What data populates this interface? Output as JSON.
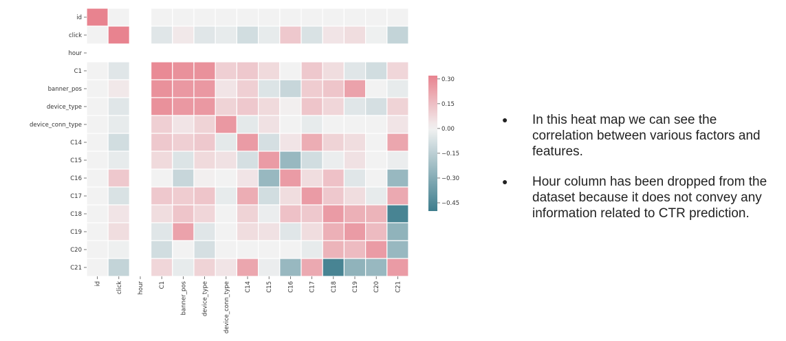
{
  "chart_data": {
    "type": "heatmap",
    "title": "",
    "row_labels": [
      "id",
      "click",
      "hour",
      "C1",
      "banner_pos",
      "device_type",
      "device_conn_type",
      "C14",
      "C15",
      "C16",
      "C17",
      "C18",
      "C19",
      "C20",
      "C21"
    ],
    "col_labels": [
      "id",
      "click",
      "hour",
      "C1",
      "banner_pos",
      "device_type",
      "device_conn_type",
      "C14",
      "C15",
      "C16",
      "C17",
      "C18",
      "C19",
      "C20",
      "C21"
    ],
    "values": [
      [
        1.0,
        0.0,
        null,
        0.0,
        0.0,
        0.0,
        0.0,
        0.0,
        0.0,
        0.0,
        0.0,
        0.0,
        0.0,
        0.0,
        0.0
      ],
      [
        0.0,
        1.0,
        null,
        -0.05,
        0.03,
        -0.05,
        -0.03,
        -0.09,
        -0.03,
        0.12,
        -0.07,
        0.04,
        0.06,
        -0.01,
        -0.13
      ],
      [
        null,
        null,
        null,
        null,
        null,
        null,
        null,
        null,
        null,
        null,
        null,
        null,
        null,
        null,
        null
      ],
      [
        0.0,
        -0.05,
        null,
        0.3,
        0.28,
        0.28,
        0.1,
        0.12,
        0.07,
        0.0,
        0.12,
        0.06,
        -0.05,
        -0.09,
        0.08
      ],
      [
        0.0,
        0.03,
        null,
        0.28,
        0.26,
        0.26,
        0.04,
        0.1,
        -0.06,
        -0.12,
        0.11,
        0.13,
        0.23,
        0.0,
        -0.03
      ],
      [
        0.0,
        -0.05,
        null,
        0.28,
        0.26,
        0.26,
        0.09,
        0.12,
        0.07,
        0.01,
        0.13,
        0.08,
        -0.05,
        -0.08,
        0.09
      ],
      [
        0.0,
        -0.03,
        null,
        0.1,
        0.04,
        0.09,
        0.26,
        -0.04,
        0.05,
        0.0,
        -0.03,
        0.0,
        0.0,
        0.0,
        0.04
      ],
      [
        0.0,
        -0.09,
        null,
        0.12,
        0.1,
        0.12,
        -0.04,
        0.25,
        -0.08,
        0.04,
        0.2,
        0.09,
        0.06,
        0.0,
        0.22
      ],
      [
        0.0,
        -0.03,
        null,
        0.07,
        -0.06,
        0.07,
        0.05,
        -0.08,
        0.25,
        -0.25,
        -0.09,
        -0.02,
        0.05,
        0.0,
        -0.02
      ],
      [
        0.0,
        0.12,
        null,
        0.0,
        -0.12,
        0.01,
        0.0,
        0.04,
        -0.25,
        0.25,
        0.06,
        0.14,
        -0.05,
        0.0,
        -0.25
      ],
      [
        0.0,
        -0.07,
        null,
        0.12,
        0.11,
        0.13,
        -0.03,
        0.2,
        -0.09,
        0.06,
        0.25,
        0.12,
        0.06,
        -0.03,
        0.21
      ],
      [
        0.0,
        0.04,
        null,
        0.06,
        0.13,
        0.08,
        0.0,
        0.09,
        -0.02,
        0.14,
        0.12,
        0.25,
        0.19,
        0.18,
        -0.47
      ],
      [
        0.0,
        0.06,
        null,
        -0.05,
        0.23,
        -0.05,
        0.0,
        0.06,
        0.05,
        -0.05,
        0.06,
        0.19,
        0.25,
        0.16,
        -0.27
      ],
      [
        0.0,
        -0.01,
        null,
        -0.09,
        0.0,
        -0.08,
        0.0,
        0.0,
        0.0,
        0.0,
        -0.03,
        0.18,
        0.16,
        0.25,
        -0.25
      ],
      [
        0.0,
        -0.13,
        null,
        0.08,
        -0.03,
        0.09,
        0.04,
        0.22,
        -0.02,
        -0.25,
        0.21,
        -0.47,
        -0.27,
        -0.25,
        0.25
      ]
    ],
    "colorbar_ticks": [
      "0.30",
      "0.15",
      "0.00",
      "−0.15",
      "−0.30",
      "−0.45"
    ],
    "colorbar_tick_values": [
      0.3,
      0.15,
      0.0,
      -0.15,
      -0.3,
      -0.45
    ],
    "vmin": -0.5,
    "vmax": 0.32,
    "colors": {
      "low": "#3d7d8d",
      "mid": "#f2f2f2",
      "high": "#e8838f",
      "blank": "#ffffff"
    }
  },
  "notes": {
    "items": [
      "In this heat map we can see the correlation between various factors and features.",
      "Hour column has been dropped from the dataset because it does not convey any information related to CTR prediction."
    ],
    "bullet_glyph": "●"
  }
}
